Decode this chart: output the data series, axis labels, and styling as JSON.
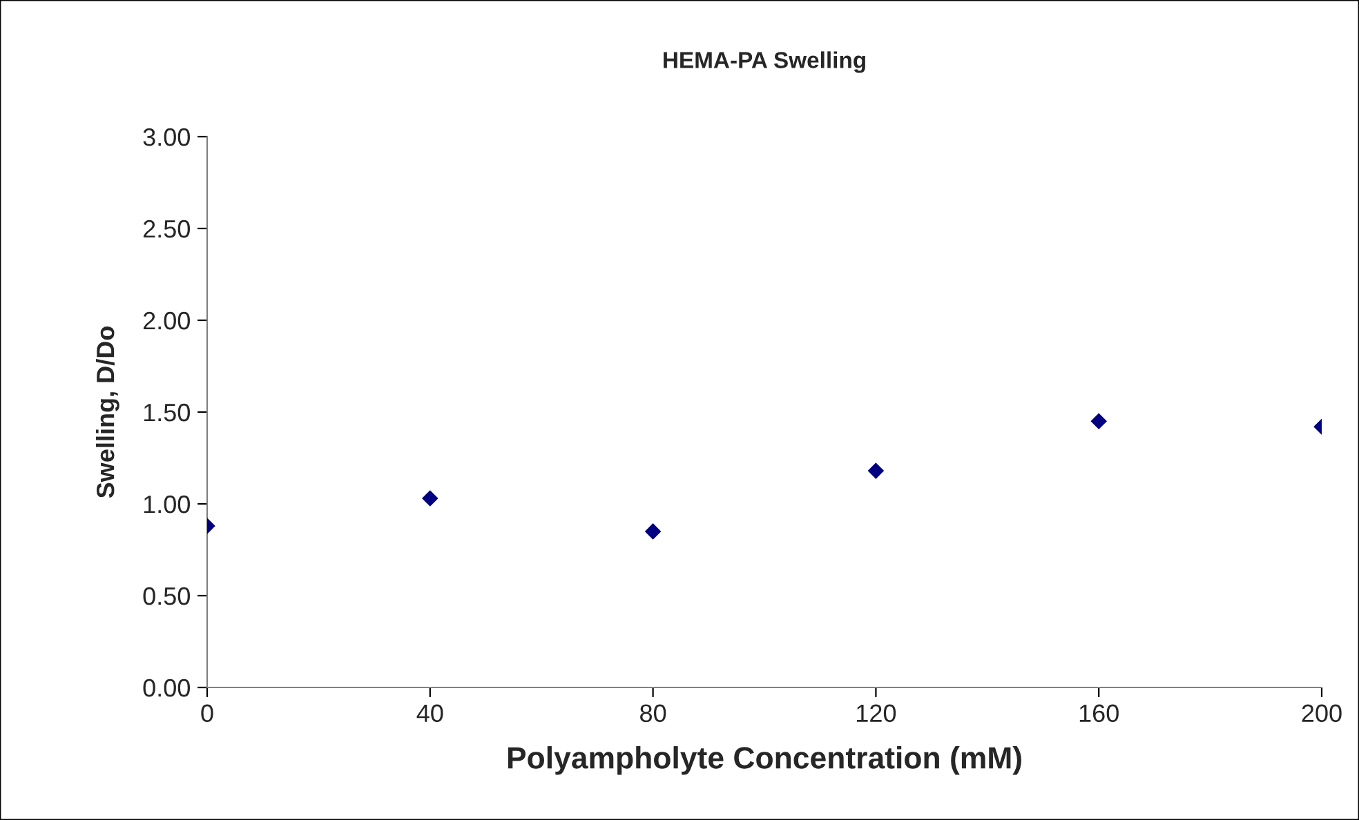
{
  "chart_data": {
    "type": "scatter",
    "title": "HEMA-PA Swelling",
    "xlabel": "Polyampholyte Concentration (mM)",
    "ylabel": "Swelling, D/Do",
    "x": [
      0,
      40,
      80,
      120,
      160,
      200
    ],
    "series": [
      {
        "color": "#000080",
        "values": [
          0.88,
          1.03,
          0.85,
          1.18,
          1.45,
          1.42
        ]
      }
    ],
    "xlim": [
      0,
      200
    ],
    "xticks": [
      0,
      40,
      80,
      120,
      160,
      200
    ],
    "ylim": [
      0,
      3
    ],
    "yticks": [
      {
        "value": 0,
        "label": "0.00"
      },
      {
        "value": 0.5,
        "label": "0.50"
      },
      {
        "value": 1,
        "label": "1.00"
      },
      {
        "value": 1.5,
        "label": "1.50"
      },
      {
        "value": 2,
        "label": "2.00"
      },
      {
        "value": 2.5,
        "label": "2.50"
      },
      {
        "value": 3,
        "label": "3.00"
      }
    ],
    "marker": "diamond",
    "grid": false,
    "legend": false
  }
}
